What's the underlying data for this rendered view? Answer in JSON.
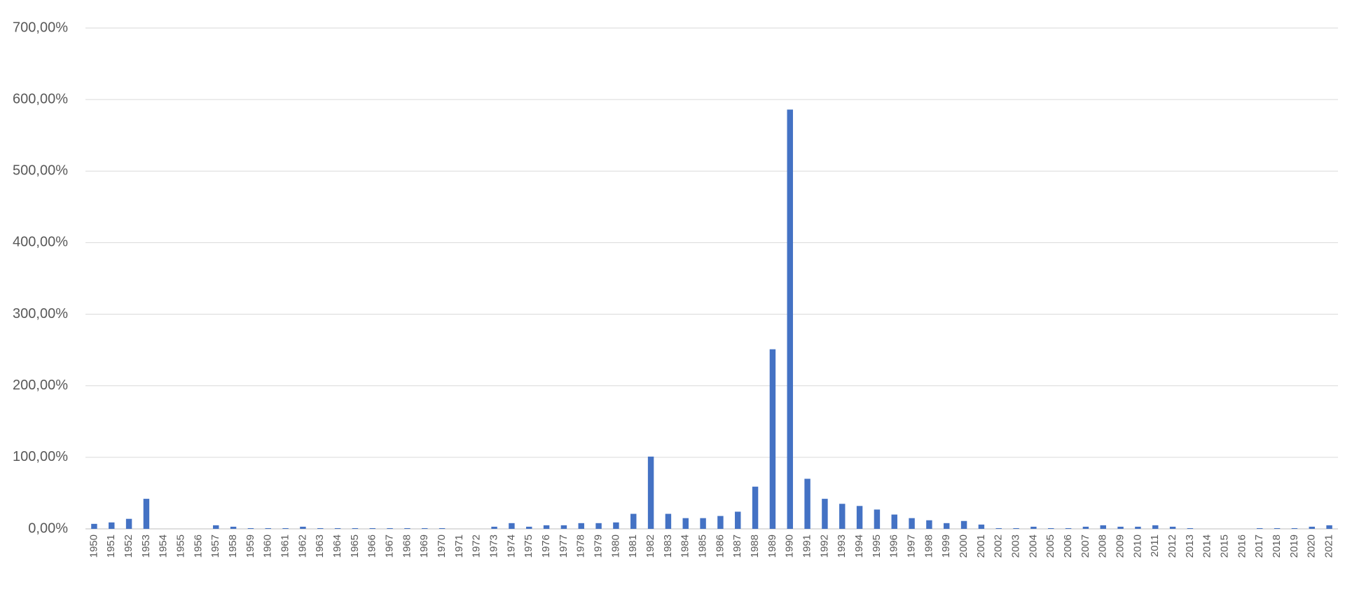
{
  "chart_data": {
    "type": "bar",
    "color": "#4472c4",
    "grid": true,
    "categories": [
      "1950",
      "1951",
      "1952",
      "1953",
      "1954",
      "1955",
      "1956",
      "1957",
      "1958",
      "1959",
      "1960",
      "1961",
      "1962",
      "1963",
      "1964",
      "1965",
      "1966",
      "1967",
      "1968",
      "1969",
      "1970",
      "1971",
      "1972",
      "1973",
      "1974",
      "1975",
      "1976",
      "1977",
      "1978",
      "1979",
      "1980",
      "1981",
      "1982",
      "1983",
      "1984",
      "1985",
      "1986",
      "1987",
      "1988",
      "1989",
      "1990",
      "1991",
      "1992",
      "1993",
      "1994",
      "1995",
      "1996",
      "1997",
      "1998",
      "1999",
      "2000",
      "2001",
      "2002",
      "2003",
      "2004",
      "2005",
      "2006",
      "2007",
      "2008",
      "2009",
      "2010",
      "2011",
      "2012",
      "2013",
      "2014",
      "2015",
      "2016",
      "2017",
      "2018",
      "2019",
      "2020",
      "2021"
    ],
    "values": [
      7,
      9,
      14,
      42,
      0,
      0,
      0,
      5,
      3,
      1,
      1,
      1,
      3,
      1,
      1,
      1,
      1,
      1,
      1,
      1,
      1,
      0,
      0,
      3,
      8,
      3,
      5,
      5,
      8,
      8,
      9,
      21,
      101,
      21,
      15,
      15,
      18,
      24,
      59,
      251,
      586,
      70,
      42,
      35,
      32,
      27,
      20,
      15,
      12,
      8,
      11,
      6,
      1,
      1,
      3,
      1,
      1,
      3,
      5,
      3,
      3,
      5,
      3,
      1,
      0,
      0,
      0,
      1,
      1,
      1,
      3,
      5
    ],
    "ylim": [
      0,
      700
    ],
    "yticks": [
      {
        "value": 0,
        "label": "0,00%"
      },
      {
        "value": 100,
        "label": "100,00%"
      },
      {
        "value": 200,
        "label": "200,00%"
      },
      {
        "value": 300,
        "label": "300,00%"
      },
      {
        "value": 400,
        "label": "400,00%"
      },
      {
        "value": 500,
        "label": "500,00%"
      },
      {
        "value": 600,
        "label": "600,00%"
      },
      {
        "value": 700,
        "label": "700,00%"
      }
    ]
  }
}
